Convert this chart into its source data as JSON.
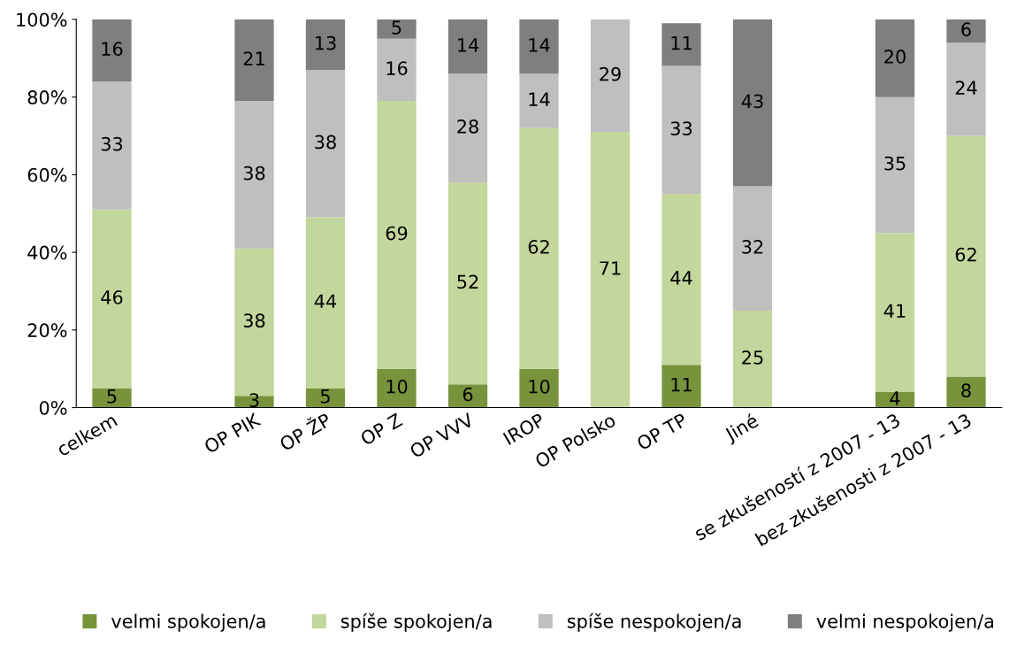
{
  "chart_data": {
    "type": "bar",
    "stacked": true,
    "data_labels": true,
    "legend": "bottom",
    "grid": false,
    "categories": [
      "celkem",
      null,
      "OP PIK",
      "OP ŽP",
      "OP Z",
      "OP VVV",
      "IROP",
      "OP Polsko",
      "OP TP",
      "Jiné",
      null,
      "se zkušeností z 2007 - 13",
      "bez zkušenosti z 2007 - 13"
    ],
    "ylim": [
      0,
      100
    ],
    "yticks": [
      {
        "value": 0,
        "label": "0%"
      },
      {
        "value": 20,
        "label": "20%"
      },
      {
        "value": 40,
        "label": "40%"
      },
      {
        "value": 60,
        "label": "60%"
      },
      {
        "value": 80,
        "label": "80%"
      },
      {
        "value": 100,
        "label": "100%"
      }
    ],
    "series": [
      {
        "name": "velmi spokojen/a",
        "color": "#77933c",
        "values": [
          5,
          null,
          3,
          5,
          10,
          6,
          10,
          null,
          11,
          null,
          null,
          4,
          8
        ]
      },
      {
        "name": "spíše spokojen/a",
        "color": "#c3d69b",
        "values": [
          46,
          null,
          38,
          44,
          69,
          52,
          62,
          71,
          44,
          25,
          null,
          41,
          62
        ]
      },
      {
        "name": "spíše nespokojen/a",
        "color": "#bfbfbf",
        "values": [
          33,
          null,
          38,
          38,
          16,
          28,
          14,
          29,
          33,
          32,
          null,
          35,
          24
        ]
      },
      {
        "name": "velmi nespokojen/a",
        "color": "#7f7f7f",
        "values": [
          16,
          null,
          21,
          13,
          5,
          14,
          14,
          null,
          11,
          43,
          null,
          20,
          6
        ]
      }
    ]
  }
}
